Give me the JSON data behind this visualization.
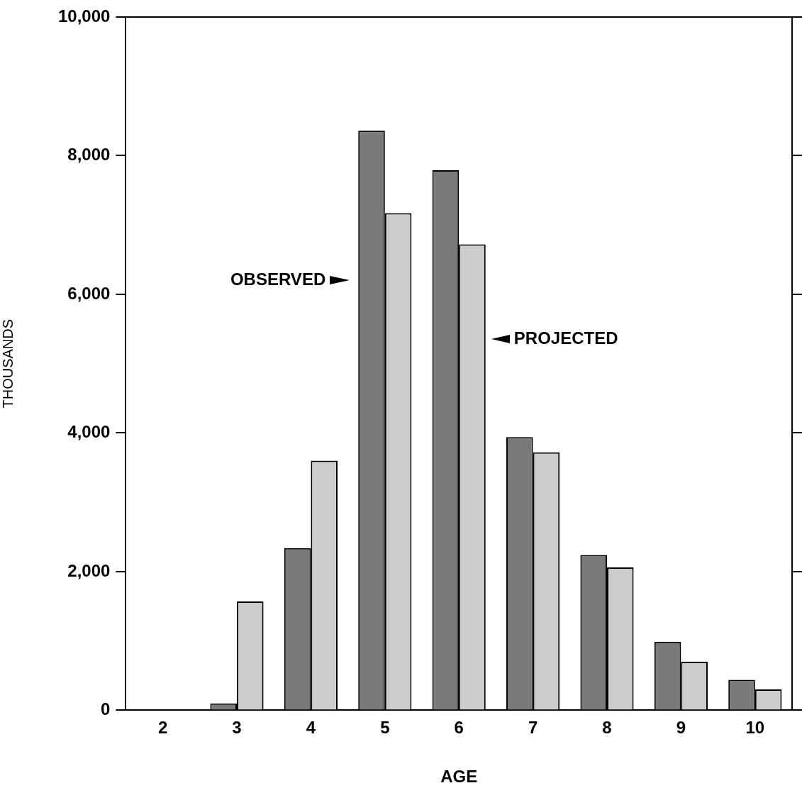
{
  "chart_data": {
    "type": "bar",
    "xlabel": "AGE",
    "ylabel": "THOUSANDS",
    "categories": [
      "2",
      "3",
      "4",
      "5",
      "6",
      "7",
      "8",
      "9",
      "10"
    ],
    "series": [
      {
        "name": "OBSERVED",
        "color": "#7a7a7a",
        "values": [
          0,
          100,
          2340,
          8360,
          7790,
          3940,
          2240,
          990,
          440
        ]
      },
      {
        "name": "PROJECTED",
        "color": "#cccccc",
        "values": [
          0,
          1570,
          3600,
          7170,
          6720,
          3720,
          2060,
          700,
          300
        ]
      }
    ],
    "ylim": [
      0,
      10000
    ],
    "yticks": [
      {
        "value": 0,
        "label": "0"
      },
      {
        "value": 2000,
        "label": "2,000"
      },
      {
        "value": 4000,
        "label": "4,000"
      },
      {
        "value": 6000,
        "label": "6,000"
      },
      {
        "value": 8000,
        "label": "8,000"
      },
      {
        "value": 10000,
        "label": "10,000"
      }
    ]
  }
}
